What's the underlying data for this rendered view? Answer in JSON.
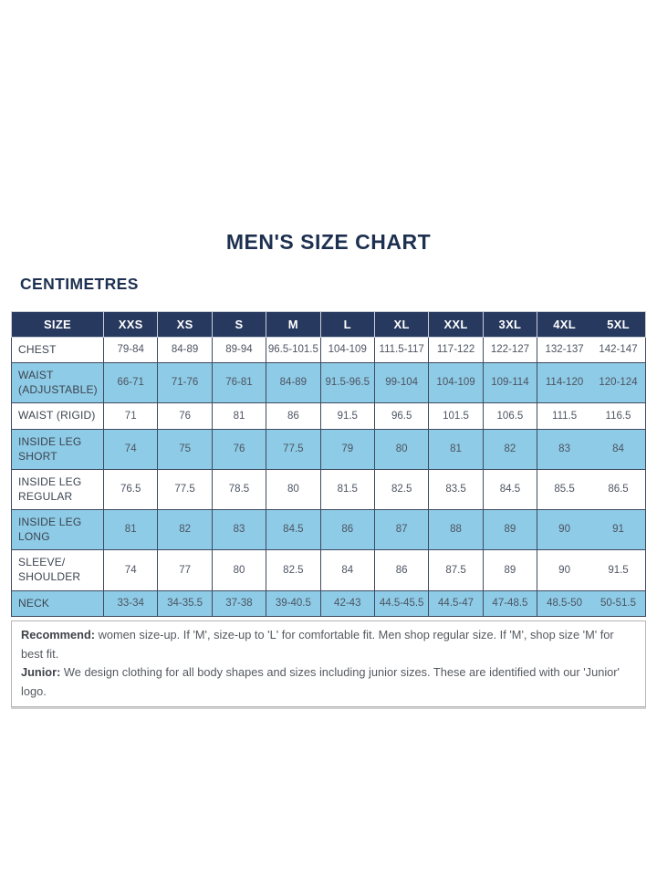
{
  "page": {
    "title": "MEN'S SIZE CHART",
    "unit_label": "CENTIMETRES"
  },
  "table": {
    "header": [
      "SIZE",
      "XXS",
      "XS",
      "S",
      "M",
      "L",
      "XL",
      "XXL",
      "3XL",
      "4XL",
      "5XL"
    ],
    "rows": [
      {
        "label": "CHEST",
        "values": [
          "79-84",
          "84-89",
          "89-94",
          "96.5-101.5",
          "104-109",
          "111.5-117",
          "117-122",
          "122-127",
          "132-137",
          "142-147"
        ]
      },
      {
        "label": "WAIST (ADJUSTABLE)",
        "values": [
          "66-71",
          "71-76",
          "76-81",
          "84-89",
          "91.5-96.5",
          "99-104",
          "104-109",
          "109-114",
          "114-120",
          "120-124"
        ]
      },
      {
        "label": "WAIST (RIGID)",
        "values": [
          "71",
          "76",
          "81",
          "86",
          "91.5",
          "96.5",
          "101.5",
          "106.5",
          "111.5",
          "116.5"
        ]
      },
      {
        "label": "INSIDE LEG SHORT",
        "values": [
          "74",
          "75",
          "76",
          "77.5",
          "79",
          "80",
          "81",
          "82",
          "83",
          "84"
        ]
      },
      {
        "label": "INSIDE LEG REGULAR",
        "values": [
          "76.5",
          "77.5",
          "78.5",
          "80",
          "81.5",
          "82.5",
          "83.5",
          "84.5",
          "85.5",
          "86.5"
        ]
      },
      {
        "label": "INSIDE LEG LONG",
        "values": [
          "81",
          "82",
          "83",
          "84.5",
          "86",
          "87",
          "88",
          "89",
          "90",
          "91"
        ]
      },
      {
        "label": "SLEEVE/ SHOULDER",
        "values": [
          "74",
          "77",
          "80",
          "82.5",
          "84",
          "86",
          "87.5",
          "89",
          "90",
          "91.5"
        ]
      },
      {
        "label": "NECK",
        "values": [
          "33-34",
          "34-35.5",
          "37-38",
          "39-40.5",
          "42-43",
          "44.5-45.5",
          "44.5-47",
          "47-48.5",
          "48.5-50",
          "50-51.5"
        ]
      }
    ]
  },
  "notes": {
    "recommend_label": "Recommend:",
    "recommend_text": " women size-up. If 'M', size-up to 'L' for comfortable fit. Men shop regular size. If 'M', shop size 'M' for best fit.",
    "junior_label": "Junior:",
    "junior_text": " We design clothing for all body shapes and sizes including junior sizes. These are identified with our 'Junior' logo."
  },
  "colors": {
    "header_bg": "#27395e",
    "header_text": "#ffffff",
    "row_alt_bg": "#8ecbe6",
    "row_bg": "#ffffff",
    "title_text": "#1d3050",
    "cell_text": "#4d5462",
    "table_border": "#3f4a61",
    "notes_border": "#b5b5b5"
  }
}
